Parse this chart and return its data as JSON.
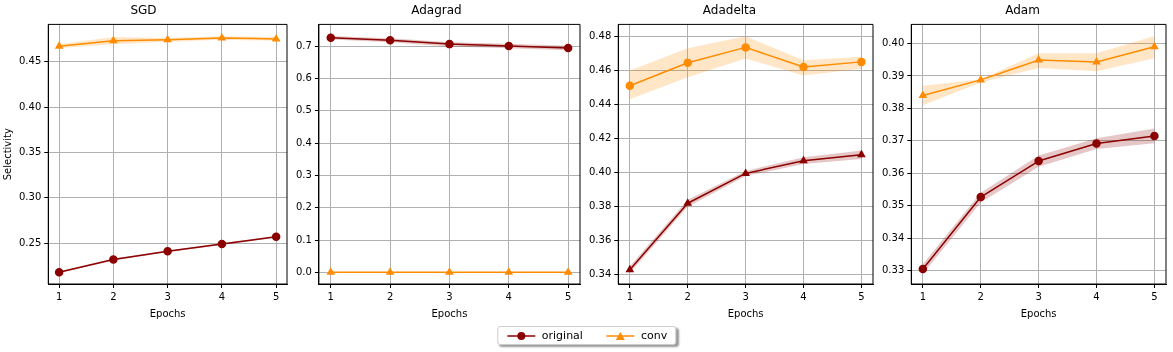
{
  "chart_data": [
    {
      "type": "line",
      "title": "SGD",
      "xlabel": "Epochs",
      "ylabel": "Selectivity",
      "x": [
        1,
        2,
        3,
        4,
        5
      ],
      "xlim": [
        0.8,
        5.2
      ],
      "xticks": [
        1,
        2,
        3,
        4,
        5
      ],
      "ylim": [
        0.205,
        0.491
      ],
      "yticks": [
        {
          "value": 0.25,
          "label": "0.25"
        },
        {
          "value": 0.3,
          "label": "0.30"
        },
        {
          "value": 0.35,
          "label": "0.35"
        },
        {
          "value": 0.4,
          "label": "0.40"
        },
        {
          "value": 0.45,
          "label": "0.45"
        }
      ],
      "grid": true,
      "legend": "bottom",
      "series": [
        {
          "name": "original",
          "color": "#8b0000",
          "marker": "circle",
          "values": [
            0.218,
            0.232,
            0.241,
            0.249,
            0.257
          ],
          "lower": [
            0.217,
            0.231,
            0.24,
            0.248,
            0.256
          ],
          "upper": [
            0.219,
            0.233,
            0.242,
            0.25,
            0.258
          ]
        },
        {
          "name": "conv",
          "color": "#ff8c00",
          "marker": "triangle",
          "values": [
            0.467,
            0.473,
            0.474,
            0.476,
            0.475
          ],
          "lower": [
            0.465,
            0.469,
            0.472,
            0.474,
            0.473
          ],
          "upper": [
            0.469,
            0.477,
            0.476,
            0.478,
            0.477
          ]
        }
      ]
    },
    {
      "type": "line",
      "title": "Adagrad",
      "xlabel": "Epochs",
      "x": [
        1,
        2,
        3,
        4,
        5
      ],
      "xlim": [
        0.8,
        5.2
      ],
      "xticks": [
        1,
        2,
        3,
        4,
        5
      ],
      "ylim": [
        -0.036,
        0.767
      ],
      "yticks": [
        {
          "value": 0,
          "label": "0.0"
        },
        {
          "value": 0.1,
          "label": "0.1"
        },
        {
          "value": 0.2,
          "label": "0.2"
        },
        {
          "value": 0.3,
          "label": "0.3"
        },
        {
          "value": 0.4,
          "label": "0.4"
        },
        {
          "value": 0.5,
          "label": "0.5"
        },
        {
          "value": 0.6,
          "label": "0.6"
        },
        {
          "value": 0.7,
          "label": "0.7"
        }
      ],
      "grid": true,
      "legend": "bottom",
      "series": [
        {
          "name": "original",
          "color": "#8b0000",
          "marker": "circle",
          "values": [
            0.726,
            0.718,
            0.706,
            0.7,
            0.694
          ],
          "lower": [
            0.72,
            0.712,
            0.699,
            0.693,
            0.687
          ],
          "upper": [
            0.731,
            0.724,
            0.712,
            0.707,
            0.701
          ]
        },
        {
          "name": "conv",
          "color": "#ff8c00",
          "marker": "triangle",
          "values": [
            0,
            0,
            0,
            0,
            0
          ]
        }
      ]
    },
    {
      "type": "line",
      "title": "Adadelta",
      "xlabel": "Epochs",
      "x": [
        1,
        2,
        3,
        4,
        5
      ],
      "xlim": [
        0.8,
        5.2
      ],
      "xticks": [
        1,
        2,
        3,
        4,
        5
      ],
      "ylim": [
        0.3346,
        0.487
      ],
      "yticks": [
        {
          "value": 0.34,
          "label": "0.34"
        },
        {
          "value": 0.36,
          "label": "0.36"
        },
        {
          "value": 0.38,
          "label": "0.38"
        },
        {
          "value": 0.4,
          "label": "0.40"
        },
        {
          "value": 0.42,
          "label": "0.42"
        },
        {
          "value": 0.44,
          "label": "0.44"
        },
        {
          "value": 0.46,
          "label": "0.46"
        },
        {
          "value": 0.48,
          "label": "0.48"
        }
      ],
      "grid": true,
      "legend": "bottom",
      "series": [
        {
          "name": "original",
          "color": "#8b0000",
          "marker": "triangle",
          "values": [
            0.343,
            0.382,
            0.3995,
            0.407,
            0.4105
          ],
          "lower": [
            0.341,
            0.38,
            0.398,
            0.405,
            0.408
          ],
          "upper": [
            0.345,
            0.384,
            0.401,
            0.409,
            0.413
          ]
        },
        {
          "name": "conv",
          "color": "#ff8c00",
          "marker": "circle",
          "values": [
            0.451,
            0.4645,
            0.4735,
            0.462,
            0.465
          ],
          "lower": [
            0.443,
            0.456,
            0.467,
            0.457,
            0.461
          ],
          "upper": [
            0.46,
            0.473,
            0.48,
            0.466,
            0.468
          ]
        }
      ]
    },
    {
      "type": "line",
      "title": "Adam",
      "xlabel": "Epochs",
      "x": [
        1,
        2,
        3,
        4,
        5
      ],
      "xlim": [
        0.8,
        5.2
      ],
      "xticks": [
        1,
        2,
        3,
        4,
        5
      ],
      "ylim": [
        0.3259,
        0.4059
      ],
      "yticks": [
        {
          "value": 0.33,
          "label": "0.33"
        },
        {
          "value": 0.34,
          "label": "0.34"
        },
        {
          "value": 0.35,
          "label": "0.35"
        },
        {
          "value": 0.36,
          "label": "0.36"
        },
        {
          "value": 0.37,
          "label": "0.37"
        },
        {
          "value": 0.38,
          "label": "0.38"
        },
        {
          "value": 0.39,
          "label": "0.39"
        },
        {
          "value": 0.4,
          "label": "0.40"
        }
      ],
      "grid": true,
      "legend": "bottom",
      "series": [
        {
          "name": "original",
          "color": "#8b0000",
          "marker": "circle",
          "values": [
            0.3305,
            0.3527,
            0.3638,
            0.3692,
            0.3715
          ],
          "lower": [
            0.329,
            0.351,
            0.362,
            0.3675,
            0.3693
          ],
          "upper": [
            0.332,
            0.354,
            0.3655,
            0.3708,
            0.3738
          ]
        },
        {
          "name": "conv",
          "color": "#ff8c00",
          "marker": "triangle",
          "values": [
            0.384,
            0.3888,
            0.3949,
            0.3943,
            0.399
          ],
          "lower": [
            0.381,
            0.388,
            0.3925,
            0.3915,
            0.3955
          ],
          "upper": [
            0.387,
            0.389,
            0.397,
            0.397,
            0.4023
          ]
        }
      ]
    }
  ]
}
